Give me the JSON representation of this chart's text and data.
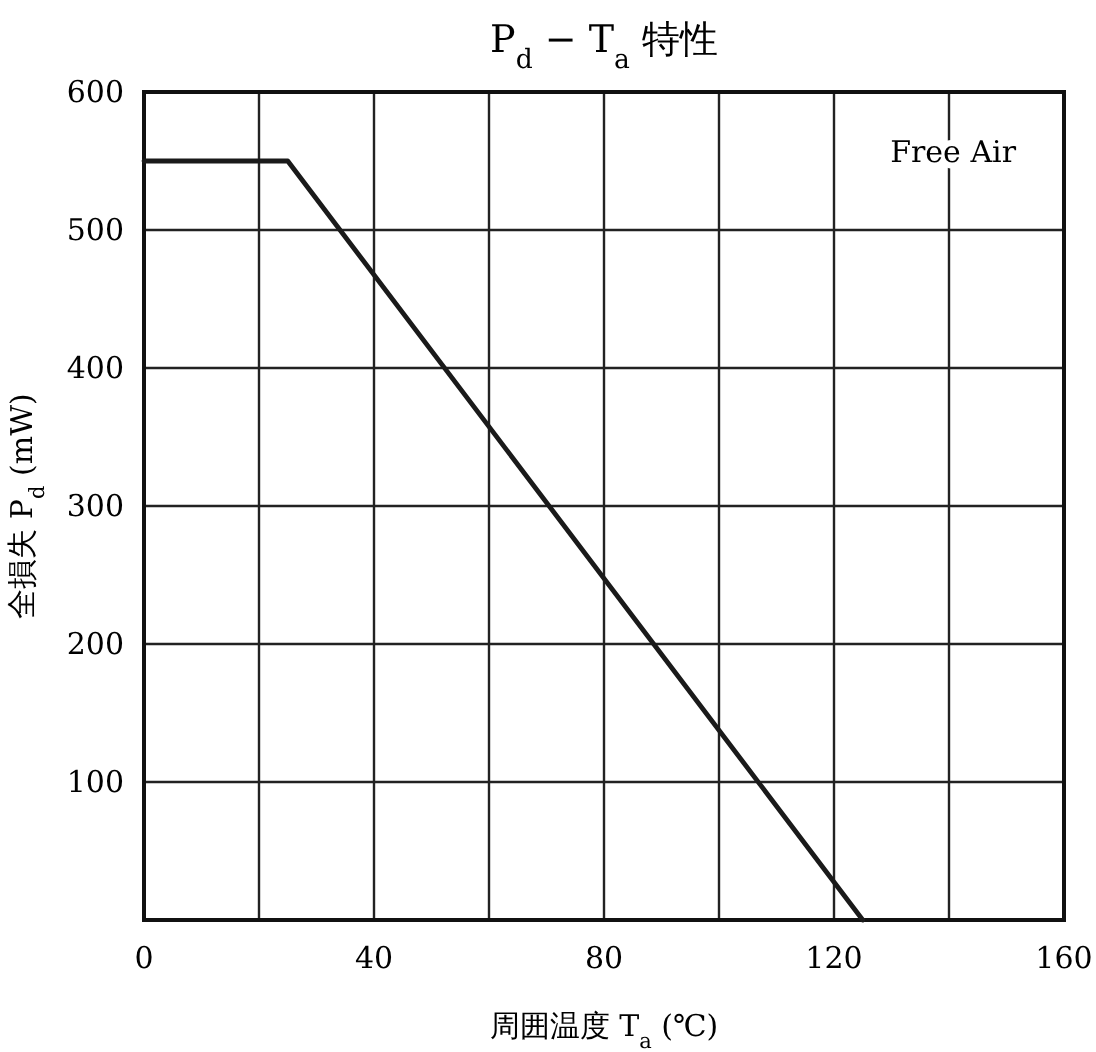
{
  "chart_data": {
    "type": "line",
    "title": "P$_{d}$ − T$_{a}$ 特性",
    "xlabel": "周囲温度 T$_{a}$ (℃)",
    "ylabel": "全損失 P$_{d}$ (mW)",
    "x": [
      0,
      25,
      125
    ],
    "values": [
      550,
      550,
      0
    ],
    "color": "#1a1a1a",
    "xlim": [
      0,
      160
    ],
    "ylim": [
      0,
      600
    ],
    "xticks": [
      0,
      {
        "value": 20,
        "label": null
      },
      40,
      {
        "value": 60,
        "label": null
      },
      80,
      {
        "value": 100,
        "label": null
      },
      120,
      {
        "value": 140,
        "label": null
      },
      160
    ],
    "yticks": [
      {
        "value": 0,
        "label": null
      },
      100,
      200,
      300,
      400,
      500,
      600
    ],
    "grid": true,
    "annotations": [
      "Free Air"
    ]
  }
}
